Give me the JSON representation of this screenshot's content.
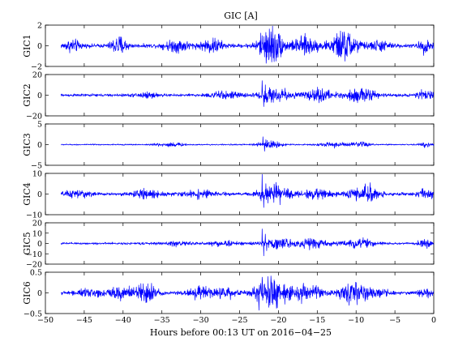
{
  "chart_data": {
    "type": "line",
    "title": "GIC [A]",
    "xlabel": "Hours before  00:13 UT on 2016−04−25",
    "xlim": [
      -50,
      0
    ],
    "data_xrange": [
      -48,
      0
    ],
    "xticks": [
      -50,
      -45,
      -40,
      -35,
      -30,
      -25,
      -20,
      -15,
      -10,
      -5,
      0
    ],
    "xtick_labels": [
      "−50",
      "−45",
      "−40",
      "−35",
      "−30",
      "−25",
      "−20",
      "−15",
      "−10",
      "−5",
      "0"
    ],
    "line_color": "#0000ff",
    "grid": false,
    "panels": [
      {
        "ylabel": "GIC1",
        "ylim": [
          -2,
          2
        ],
        "yticks": [
          -2,
          0,
          2
        ],
        "ytick_labels": [
          "−2",
          "0",
          "2"
        ],
        "noise": 0.12,
        "bursts": [
          {
            "x": -46.5,
            "amp": 0.35,
            "w": 1.5
          },
          {
            "x": -40.5,
            "amp": 0.6,
            "w": 1.5
          },
          {
            "x": -33,
            "amp": 0.35,
            "w": 2.5
          },
          {
            "x": -28.5,
            "amp": 0.45,
            "w": 2
          },
          {
            "x": -21,
            "amp": 1.3,
            "w": 2.2
          },
          {
            "x": -16.5,
            "amp": 0.55,
            "w": 2.5
          },
          {
            "x": -11.5,
            "amp": 0.95,
            "w": 2.5
          },
          {
            "x": -7,
            "amp": 0.3,
            "w": 2
          },
          {
            "x": -1,
            "amp": 0.45,
            "w": 1.2
          }
        ],
        "spikes": [
          {
            "x": -21.6,
            "v": 1.3
          },
          {
            "x": -21.2,
            "v": -1.2
          },
          {
            "x": -19.8,
            "v": 1.0
          },
          {
            "x": -10.8,
            "v": 1.15
          },
          {
            "x": -11.9,
            "v": -0.85
          }
        ]
      },
      {
        "ylabel": "GIC2",
        "ylim": [
          -20,
          20
        ],
        "yticks": [
          -20,
          0,
          20
        ],
        "ytick_labels": [
          "−20",
          "0",
          "20"
        ],
        "noise": 0.9,
        "bursts": [
          {
            "x": -37,
            "amp": 1.6,
            "w": 2
          },
          {
            "x": -27,
            "amp": 2.0,
            "w": 3
          },
          {
            "x": -20.5,
            "amp": 4.5,
            "w": 3
          },
          {
            "x": -15,
            "amp": 3.5,
            "w": 3
          },
          {
            "x": -9.5,
            "amp": 3.8,
            "w": 3
          },
          {
            "x": -1,
            "amp": 3.0,
            "w": 1.5
          }
        ],
        "spikes": [
          {
            "x": -22.1,
            "v": 14
          },
          {
            "x": -21.9,
            "v": -11
          },
          {
            "x": -21.7,
            "v": 10
          },
          {
            "x": -21.5,
            "v": -7
          }
        ]
      },
      {
        "ylabel": "GIC3",
        "ylim": [
          -5,
          5
        ],
        "yticks": [
          -5,
          0,
          5
        ],
        "ytick_labels": [
          "−5",
          "0",
          "5"
        ],
        "noise": 0.1,
        "bursts": [
          {
            "x": -34,
            "amp": 0.3,
            "w": 3
          },
          {
            "x": -21,
            "amp": 0.55,
            "w": 2.5
          },
          {
            "x": -13,
            "amp": 0.35,
            "w": 3
          },
          {
            "x": -9.5,
            "amp": 0.4,
            "w": 2
          },
          {
            "x": -1,
            "amp": 0.3,
            "w": 1.5
          }
        ],
        "spikes": [
          {
            "x": -22.0,
            "v": 1.9
          },
          {
            "x": -21.8,
            "v": -1.6
          },
          {
            "x": -21.6,
            "v": 1.2
          }
        ]
      },
      {
        "ylabel": "GIC4",
        "ylim": [
          -10,
          10
        ],
        "yticks": [
          -10,
          0,
          10
        ],
        "ytick_labels": [
          "−10",
          "0",
          "10"
        ],
        "noise": 0.5,
        "bursts": [
          {
            "x": -46,
            "amp": 1.0,
            "w": 2.5
          },
          {
            "x": -37,
            "amp": 1.3,
            "w": 2.5
          },
          {
            "x": -30,
            "amp": 1.0,
            "w": 3
          },
          {
            "x": -20.5,
            "amp": 2.4,
            "w": 3
          },
          {
            "x": -15,
            "amp": 1.2,
            "w": 3
          },
          {
            "x": -9,
            "amp": 2.2,
            "w": 3
          },
          {
            "x": -1,
            "amp": 1.6,
            "w": 1.5
          }
        ],
        "spikes": [
          {
            "x": -22.1,
            "v": 9.5
          },
          {
            "x": -21.9,
            "v": -6.5
          },
          {
            "x": -21.6,
            "v": 5
          },
          {
            "x": -8.2,
            "v": 5.5
          },
          {
            "x": -8.5,
            "v": -3.5
          }
        ]
      },
      {
        "ylabel": "GIC5",
        "ylim": [
          -20,
          20
        ],
        "yticks": [
          -20,
          -10,
          0,
          10,
          20
        ],
        "ytick_labels": [
          "−20",
          "−10",
          "0",
          "10",
          "20"
        ],
        "noise": 0.7,
        "bursts": [
          {
            "x": -33,
            "amp": 1.4,
            "w": 2.5
          },
          {
            "x": -27,
            "amp": 1.6,
            "w": 3
          },
          {
            "x": -20,
            "amp": 3.2,
            "w": 3
          },
          {
            "x": -15.5,
            "amp": 2.8,
            "w": 3
          },
          {
            "x": -9.5,
            "amp": 2.8,
            "w": 3
          },
          {
            "x": -1.2,
            "amp": 2.6,
            "w": 1.2
          }
        ],
        "spikes": [
          {
            "x": -22.1,
            "v": 14
          },
          {
            "x": -21.9,
            "v": -12
          },
          {
            "x": -21.7,
            "v": 9
          },
          {
            "x": -21.5,
            "v": -7
          }
        ]
      },
      {
        "ylabel": "GIC6",
        "ylim": [
          -0.5,
          0.5
        ],
        "yticks": [
          -0.5,
          0,
          0.5
        ],
        "ytick_labels": [
          "−0.5",
          "0",
          "0.5"
        ],
        "noise": 0.025,
        "bursts": [
          {
            "x": -44,
            "amp": 0.05,
            "w": 3
          },
          {
            "x": -40.5,
            "amp": 0.09,
            "w": 2
          },
          {
            "x": -38,
            "amp": 0.1,
            "w": 2
          },
          {
            "x": -36.5,
            "amp": 0.11,
            "w": 1.5
          },
          {
            "x": -30,
            "amp": 0.08,
            "w": 2.5
          },
          {
            "x": -27,
            "amp": 0.09,
            "w": 2
          },
          {
            "x": -21,
            "amp": 0.24,
            "w": 3
          },
          {
            "x": -16.5,
            "amp": 0.12,
            "w": 3
          },
          {
            "x": -10.5,
            "amp": 0.15,
            "w": 3
          },
          {
            "x": -7,
            "amp": 0.06,
            "w": 2
          },
          {
            "x": -1,
            "amp": 0.06,
            "w": 1.5
          }
        ],
        "spikes": [
          {
            "x": -22.5,
            "v": -0.42
          },
          {
            "x": -22.1,
            "v": 0.38
          },
          {
            "x": -20.5,
            "v": 0.28
          },
          {
            "x": -10.0,
            "v": 0.25
          },
          {
            "x": -37.4,
            "v": 0.22
          }
        ]
      }
    ]
  }
}
